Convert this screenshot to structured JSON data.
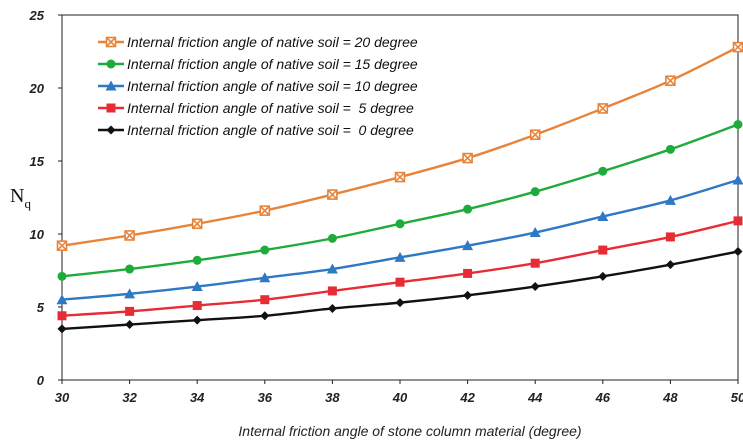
{
  "chart_data": {
    "type": "line",
    "xlabel": "Internal friction angle of stone column material (degree)",
    "ylabel_main": "N",
    "ylabel_sub": "q",
    "xlim": [
      30,
      50
    ],
    "ylim": [
      0,
      25
    ],
    "x_ticks": [
      30,
      32,
      34,
      36,
      38,
      40,
      42,
      44,
      46,
      48,
      50
    ],
    "x_tick_labels": [
      "30",
      "32",
      "34",
      "36",
      "38",
      "40",
      "42",
      "44",
      "46",
      "48",
      "50"
    ],
    "y_ticks": [
      0,
      5,
      10,
      15,
      20,
      25
    ],
    "y_tick_labels": [
      "0",
      "5",
      "10",
      "15",
      "20",
      "25"
    ],
    "grid": false,
    "legend_position": "top-left",
    "x": [
      30,
      32,
      34,
      36,
      38,
      40,
      42,
      44,
      46,
      48,
      50
    ],
    "series": [
      {
        "name": "Internal friction angle of native soil = 20 degree",
        "color": "#e8843a",
        "marker": "square-x",
        "values": [
          9.2,
          9.9,
          10.7,
          11.6,
          12.7,
          13.9,
          15.2,
          16.8,
          18.6,
          20.5,
          22.8
        ]
      },
      {
        "name": "Internal friction angle of native soil = 15 degree",
        "color": "#1faa3c",
        "marker": "circle",
        "values": [
          7.1,
          7.6,
          8.2,
          8.9,
          9.7,
          10.7,
          11.7,
          12.9,
          14.3,
          15.8,
          17.5
        ]
      },
      {
        "name": "Internal friction angle of native soil = 10 degree",
        "color": "#2f78c4",
        "marker": "triangle",
        "values": [
          5.5,
          5.9,
          6.4,
          7.0,
          7.6,
          8.4,
          9.2,
          10.1,
          11.2,
          12.3,
          13.7
        ]
      },
      {
        "name": "Internal friction angle of native soil =  5 degree",
        "color": "#e82c35",
        "marker": "square",
        "values": [
          4.4,
          4.7,
          5.1,
          5.5,
          6.1,
          6.7,
          7.3,
          8.0,
          8.9,
          9.8,
          10.9
        ]
      },
      {
        "name": "Internal friction angle of native soil =  0 degree",
        "color": "#111111",
        "marker": "diamond",
        "values": [
          3.5,
          3.8,
          4.1,
          4.4,
          4.9,
          5.3,
          5.8,
          6.4,
          7.1,
          7.9,
          8.8
        ]
      }
    ]
  }
}
